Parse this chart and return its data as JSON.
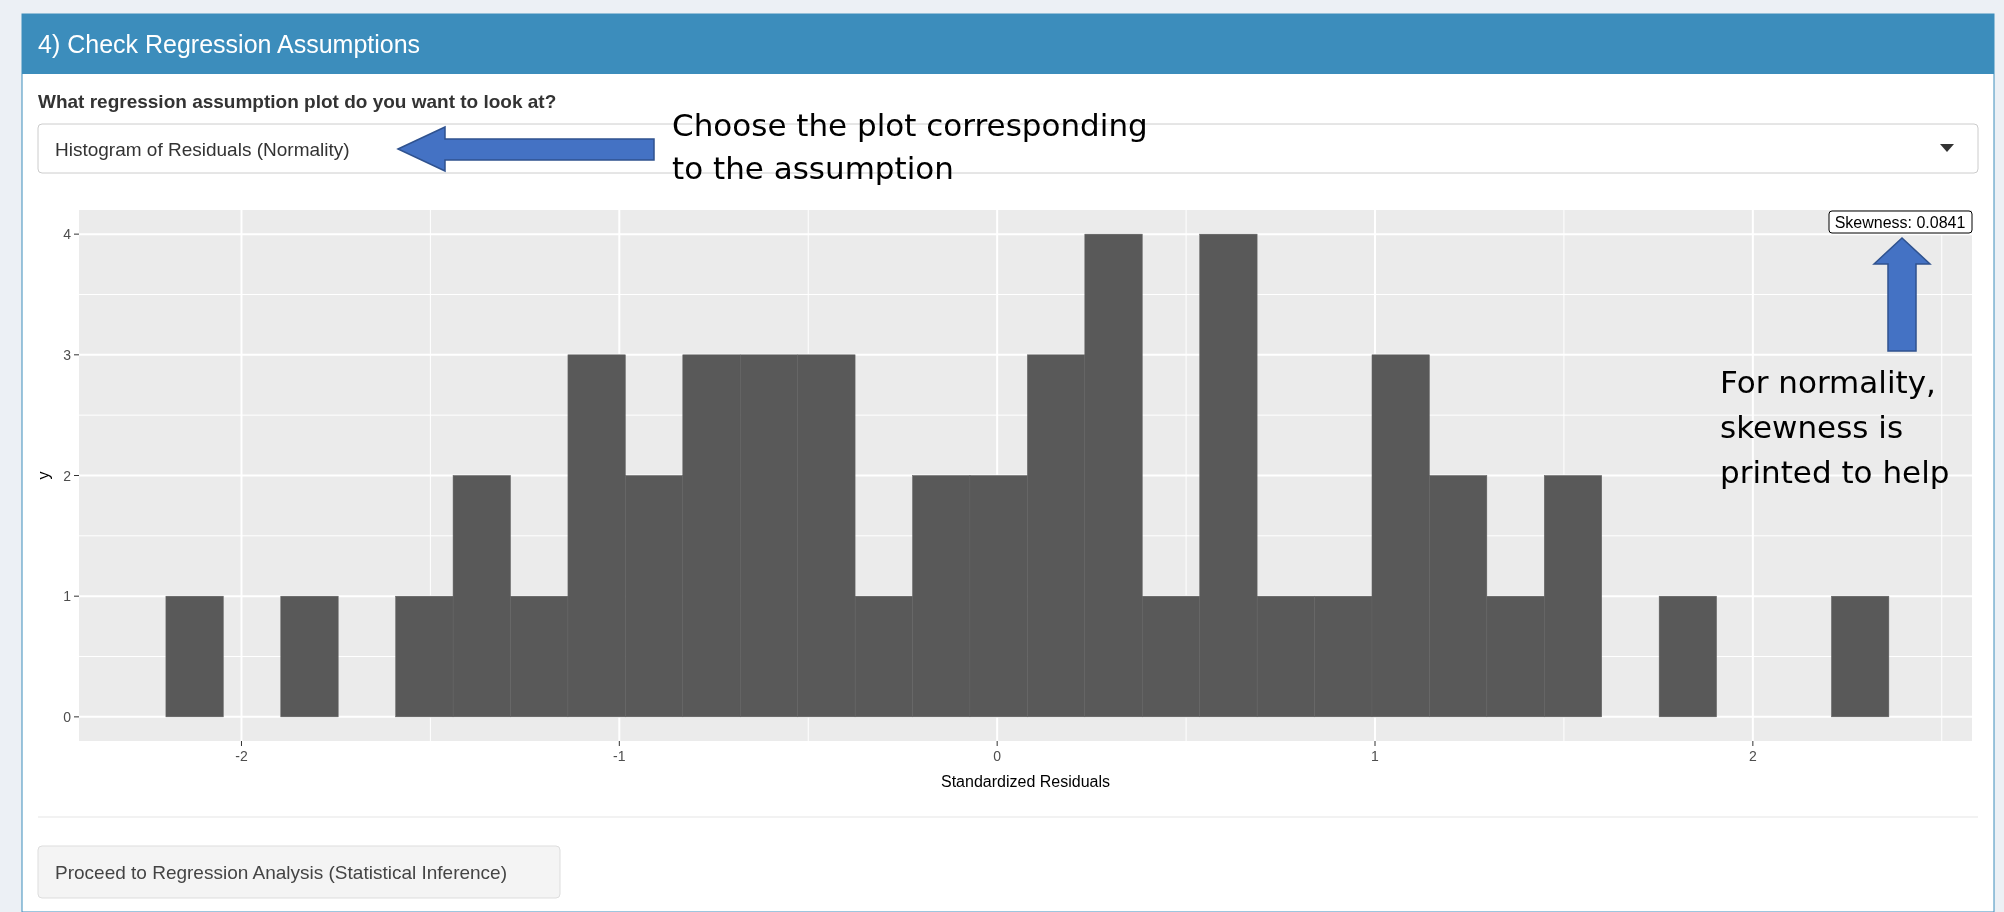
{
  "chart_data": {
    "type": "histogram",
    "title": "4) Check Regression Assumptions",
    "subtitle": "What regression assumption plot do you want to look at?",
    "xlabel": "Standardized Residuals",
    "ylabel": "y",
    "bins": [
      -2.2,
      -2.048,
      -1.896,
      -1.744,
      -1.592,
      -1.44,
      -1.288,
      -1.136,
      -0.984,
      -0.832,
      -0.68,
      -0.528,
      -0.376,
      -0.224,
      -0.072,
      0.08,
      0.232,
      0.384,
      0.536,
      0.688,
      0.84,
      0.992,
      1.144,
      1.296,
      1.448,
      1.6,
      1.752,
      1.904,
      2.056,
      2.208,
      2.36
    ],
    "values": [
      1,
      0,
      1,
      0,
      1,
      2,
      1,
      3,
      2,
      3,
      3,
      3,
      1,
      2,
      2,
      3,
      4,
      1,
      4,
      1,
      1,
      3,
      2,
      1,
      2,
      0,
      1,
      0,
      0,
      1
    ],
    "color": "#595959",
    "xlim": [
      -2.43,
      2.58
    ],
    "ylim": [
      -0.2,
      4.2
    ],
    "xticks": [
      -2,
      -1,
      0,
      1,
      2
    ],
    "yticks": [
      0,
      1,
      2,
      3,
      4
    ],
    "grid": true,
    "annotations": [
      "Histogram of Residuals (Normality)",
      "Choose the plot corresponding\nto the assumption",
      "Skewness: 0.0841",
      "For normality,\nskewness is\nprinted to help",
      "Proceed to Regression Analysis (Statistical Inference)"
    ]
  }
}
